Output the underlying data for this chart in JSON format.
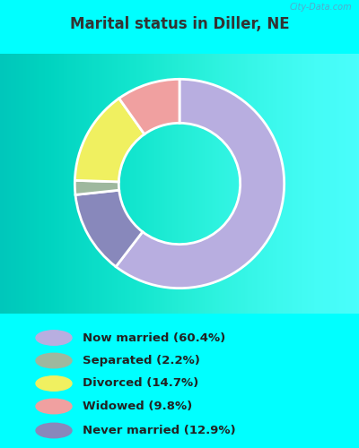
{
  "title": "Marital status in Diller, NE",
  "title_color": "#333333",
  "slices": [
    {
      "label": "Now married (60.4%)",
      "value": 60.4,
      "color": "#b8aee0"
    },
    {
      "label": "Never married (12.9%)",
      "value": 12.9,
      "color": "#8888bb"
    },
    {
      "label": "Separated (2.2%)",
      "value": 2.2,
      "color": "#9eb89e"
    },
    {
      "label": "Divorced (14.7%)",
      "value": 14.7,
      "color": "#f0f060"
    },
    {
      "label": "Widowed (9.8%)",
      "value": 9.8,
      "color": "#f0a0a0"
    }
  ],
  "legend_colors": [
    "#b8aee0",
    "#9eb89e",
    "#f0f060",
    "#f0a0a0",
    "#8888bb"
  ],
  "legend_labels": [
    "Now married (60.4%)",
    "Separated (2.2%)",
    "Divorced (14.7%)",
    "Widowed (9.8%)",
    "Never married (12.9%)"
  ],
  "watermark": "City-Data.com",
  "chart_bg_color": "#d5ead5",
  "top_bg_color": "#00FFFF",
  "bottom_bg_color": "#00FFFF",
  "figsize": [
    4.0,
    5.0
  ],
  "dpi": 100
}
